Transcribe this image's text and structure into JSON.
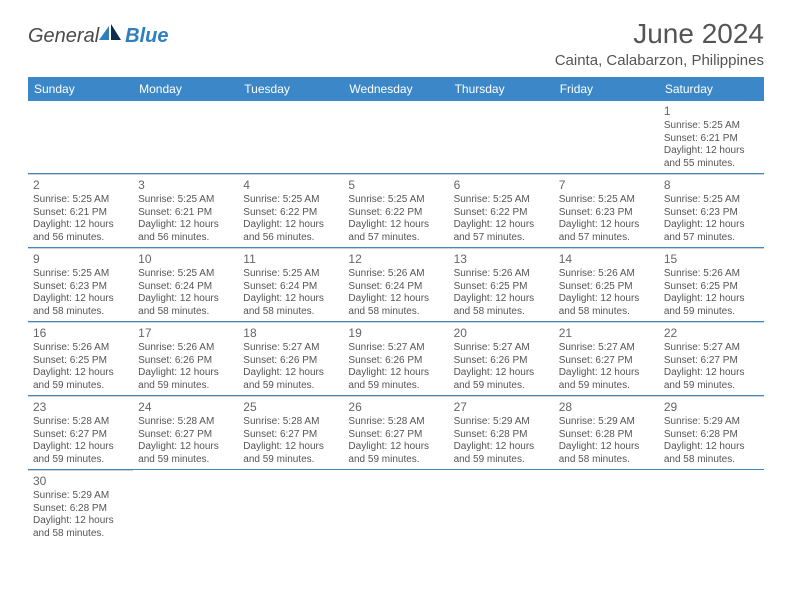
{
  "logo": {
    "general": "General",
    "blue": "Blue"
  },
  "title": "June 2024",
  "location": "Cainta, Calabarzon, Philippines",
  "colors": {
    "header_bg": "#3b87c8",
    "header_text": "#ffffff",
    "border": "#3b87c8",
    "cell_border": "#d0d0d0",
    "text": "#555555"
  },
  "weekdays": [
    "Sunday",
    "Monday",
    "Tuesday",
    "Wednesday",
    "Thursday",
    "Friday",
    "Saturday"
  ],
  "weeks": [
    [
      null,
      null,
      null,
      null,
      null,
      null,
      {
        "n": "1",
        "sunrise": "Sunrise: 5:25 AM",
        "sunset": "Sunset: 6:21 PM",
        "day1": "Daylight: 12 hours",
        "day2": "and 55 minutes."
      }
    ],
    [
      {
        "n": "2",
        "sunrise": "Sunrise: 5:25 AM",
        "sunset": "Sunset: 6:21 PM",
        "day1": "Daylight: 12 hours",
        "day2": "and 56 minutes."
      },
      {
        "n": "3",
        "sunrise": "Sunrise: 5:25 AM",
        "sunset": "Sunset: 6:21 PM",
        "day1": "Daylight: 12 hours",
        "day2": "and 56 minutes."
      },
      {
        "n": "4",
        "sunrise": "Sunrise: 5:25 AM",
        "sunset": "Sunset: 6:22 PM",
        "day1": "Daylight: 12 hours",
        "day2": "and 56 minutes."
      },
      {
        "n": "5",
        "sunrise": "Sunrise: 5:25 AM",
        "sunset": "Sunset: 6:22 PM",
        "day1": "Daylight: 12 hours",
        "day2": "and 57 minutes."
      },
      {
        "n": "6",
        "sunrise": "Sunrise: 5:25 AM",
        "sunset": "Sunset: 6:22 PM",
        "day1": "Daylight: 12 hours",
        "day2": "and 57 minutes."
      },
      {
        "n": "7",
        "sunrise": "Sunrise: 5:25 AM",
        "sunset": "Sunset: 6:23 PM",
        "day1": "Daylight: 12 hours",
        "day2": "and 57 minutes."
      },
      {
        "n": "8",
        "sunrise": "Sunrise: 5:25 AM",
        "sunset": "Sunset: 6:23 PM",
        "day1": "Daylight: 12 hours",
        "day2": "and 57 minutes."
      }
    ],
    [
      {
        "n": "9",
        "sunrise": "Sunrise: 5:25 AM",
        "sunset": "Sunset: 6:23 PM",
        "day1": "Daylight: 12 hours",
        "day2": "and 58 minutes."
      },
      {
        "n": "10",
        "sunrise": "Sunrise: 5:25 AM",
        "sunset": "Sunset: 6:24 PM",
        "day1": "Daylight: 12 hours",
        "day2": "and 58 minutes."
      },
      {
        "n": "11",
        "sunrise": "Sunrise: 5:25 AM",
        "sunset": "Sunset: 6:24 PM",
        "day1": "Daylight: 12 hours",
        "day2": "and 58 minutes."
      },
      {
        "n": "12",
        "sunrise": "Sunrise: 5:26 AM",
        "sunset": "Sunset: 6:24 PM",
        "day1": "Daylight: 12 hours",
        "day2": "and 58 minutes."
      },
      {
        "n": "13",
        "sunrise": "Sunrise: 5:26 AM",
        "sunset": "Sunset: 6:25 PM",
        "day1": "Daylight: 12 hours",
        "day2": "and 58 minutes."
      },
      {
        "n": "14",
        "sunrise": "Sunrise: 5:26 AM",
        "sunset": "Sunset: 6:25 PM",
        "day1": "Daylight: 12 hours",
        "day2": "and 58 minutes."
      },
      {
        "n": "15",
        "sunrise": "Sunrise: 5:26 AM",
        "sunset": "Sunset: 6:25 PM",
        "day1": "Daylight: 12 hours",
        "day2": "and 59 minutes."
      }
    ],
    [
      {
        "n": "16",
        "sunrise": "Sunrise: 5:26 AM",
        "sunset": "Sunset: 6:25 PM",
        "day1": "Daylight: 12 hours",
        "day2": "and 59 minutes."
      },
      {
        "n": "17",
        "sunrise": "Sunrise: 5:26 AM",
        "sunset": "Sunset: 6:26 PM",
        "day1": "Daylight: 12 hours",
        "day2": "and 59 minutes."
      },
      {
        "n": "18",
        "sunrise": "Sunrise: 5:27 AM",
        "sunset": "Sunset: 6:26 PM",
        "day1": "Daylight: 12 hours",
        "day2": "and 59 minutes."
      },
      {
        "n": "19",
        "sunrise": "Sunrise: 5:27 AM",
        "sunset": "Sunset: 6:26 PM",
        "day1": "Daylight: 12 hours",
        "day2": "and 59 minutes."
      },
      {
        "n": "20",
        "sunrise": "Sunrise: 5:27 AM",
        "sunset": "Sunset: 6:26 PM",
        "day1": "Daylight: 12 hours",
        "day2": "and 59 minutes."
      },
      {
        "n": "21",
        "sunrise": "Sunrise: 5:27 AM",
        "sunset": "Sunset: 6:27 PM",
        "day1": "Daylight: 12 hours",
        "day2": "and 59 minutes."
      },
      {
        "n": "22",
        "sunrise": "Sunrise: 5:27 AM",
        "sunset": "Sunset: 6:27 PM",
        "day1": "Daylight: 12 hours",
        "day2": "and 59 minutes."
      }
    ],
    [
      {
        "n": "23",
        "sunrise": "Sunrise: 5:28 AM",
        "sunset": "Sunset: 6:27 PM",
        "day1": "Daylight: 12 hours",
        "day2": "and 59 minutes."
      },
      {
        "n": "24",
        "sunrise": "Sunrise: 5:28 AM",
        "sunset": "Sunset: 6:27 PM",
        "day1": "Daylight: 12 hours",
        "day2": "and 59 minutes."
      },
      {
        "n": "25",
        "sunrise": "Sunrise: 5:28 AM",
        "sunset": "Sunset: 6:27 PM",
        "day1": "Daylight: 12 hours",
        "day2": "and 59 minutes."
      },
      {
        "n": "26",
        "sunrise": "Sunrise: 5:28 AM",
        "sunset": "Sunset: 6:27 PM",
        "day1": "Daylight: 12 hours",
        "day2": "and 59 minutes."
      },
      {
        "n": "27",
        "sunrise": "Sunrise: 5:29 AM",
        "sunset": "Sunset: 6:28 PM",
        "day1": "Daylight: 12 hours",
        "day2": "and 59 minutes."
      },
      {
        "n": "28",
        "sunrise": "Sunrise: 5:29 AM",
        "sunset": "Sunset: 6:28 PM",
        "day1": "Daylight: 12 hours",
        "day2": "and 58 minutes."
      },
      {
        "n": "29",
        "sunrise": "Sunrise: 5:29 AM",
        "sunset": "Sunset: 6:28 PM",
        "day1": "Daylight: 12 hours",
        "day2": "and 58 minutes."
      }
    ],
    [
      {
        "n": "30",
        "sunrise": "Sunrise: 5:29 AM",
        "sunset": "Sunset: 6:28 PM",
        "day1": "Daylight: 12 hours",
        "day2": "and 58 minutes."
      },
      null,
      null,
      null,
      null,
      null,
      null
    ]
  ]
}
